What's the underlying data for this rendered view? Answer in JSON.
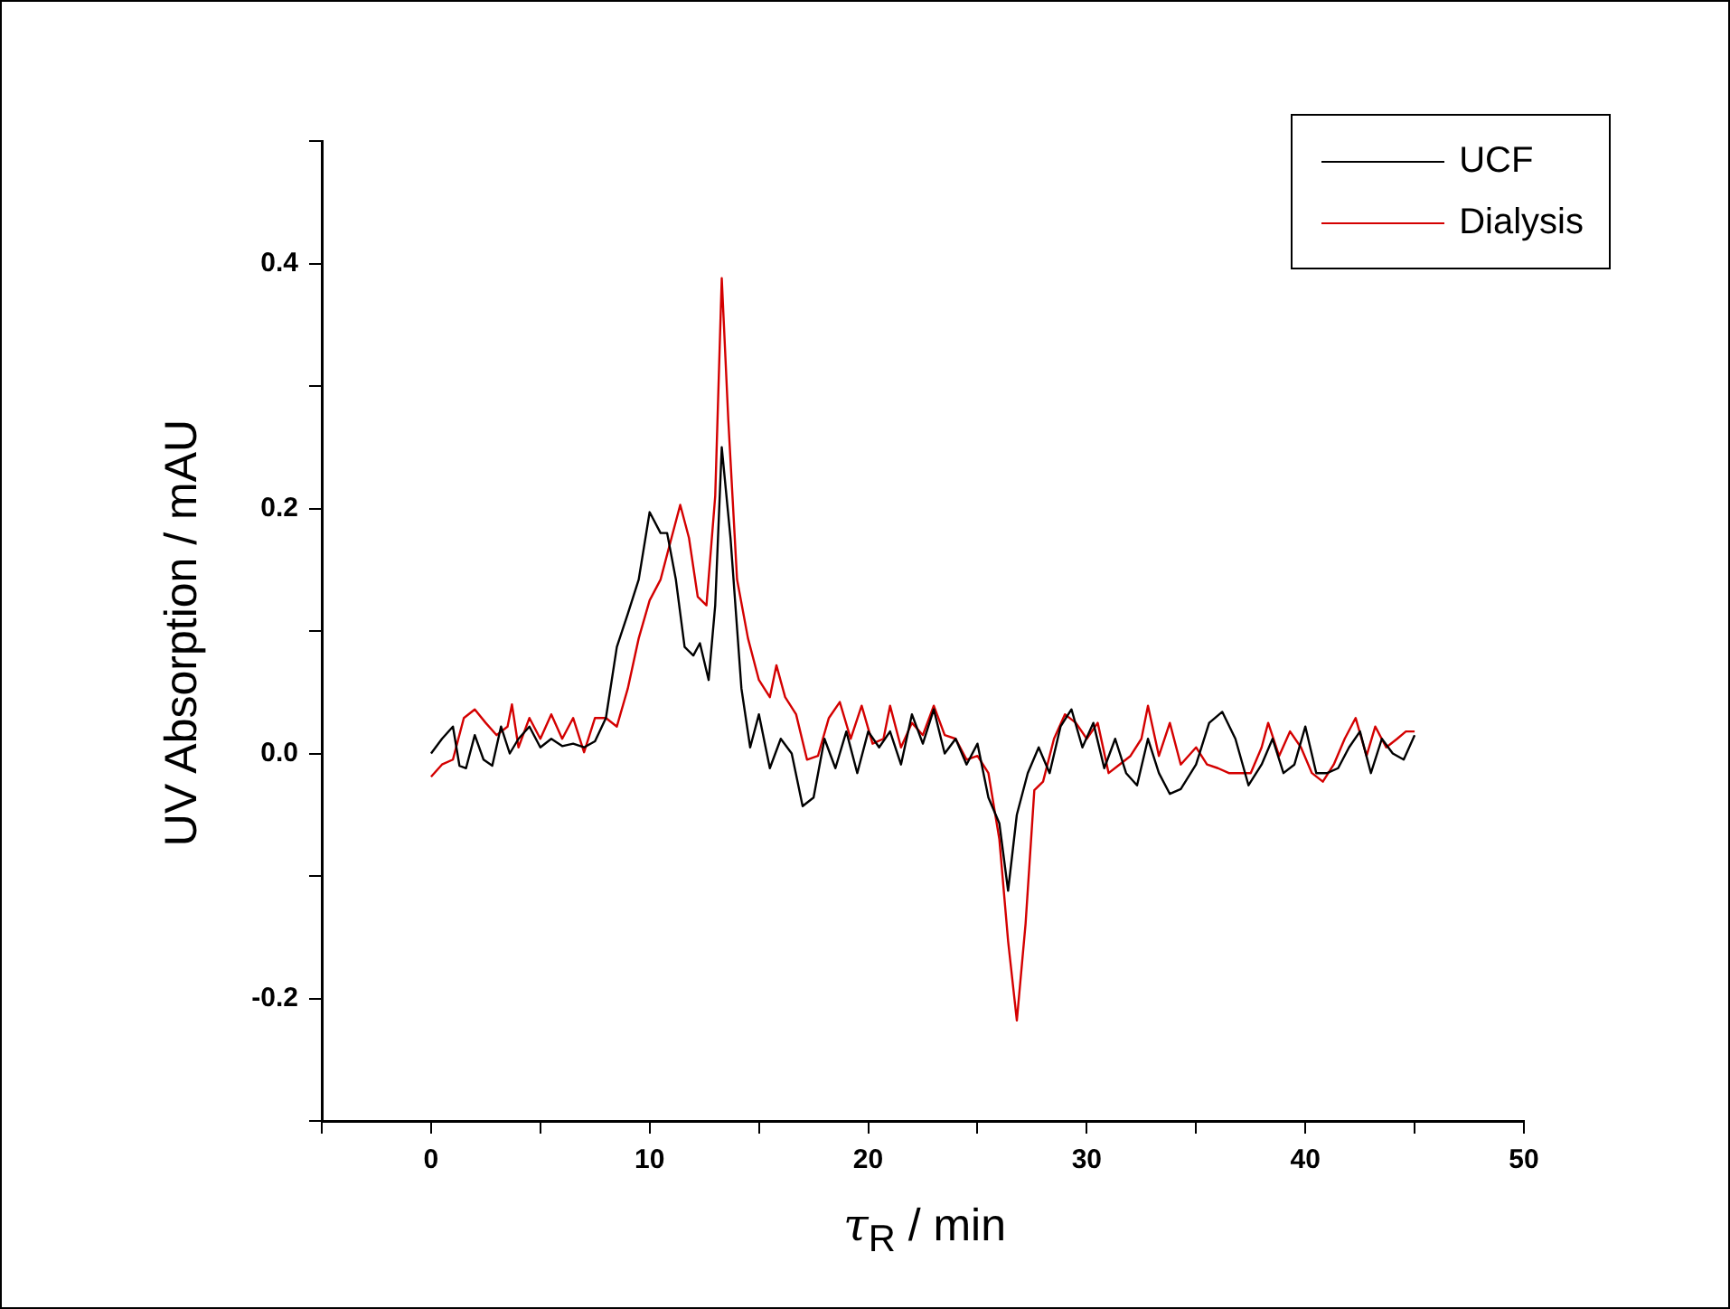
{
  "chart_data": {
    "type": "line",
    "xlabel": "τ$_{R}$ / min",
    "ylabel": "UV Absorption / mAU",
    "xlim": [
      -5,
      50
    ],
    "ylim": [
      -0.3,
      0.5
    ],
    "xticks": [
      {
        "value": -5,
        "label": null
      },
      0,
      {
        "value": 5,
        "label": null
      },
      10,
      {
        "value": 15,
        "label": null
      },
      20,
      {
        "value": 25,
        "label": null
      },
      30,
      {
        "value": 35,
        "label": null
      },
      40,
      {
        "value": 45,
        "label": null
      },
      50
    ],
    "yticks": [
      {
        "value": -0.3,
        "label": null
      },
      {
        "value": -0.2,
        "label": "-0.2"
      },
      {
        "value": -0.1,
        "label": null
      },
      {
        "value": 0,
        "label": "0.0"
      },
      {
        "value": 0.1,
        "label": null
      },
      {
        "value": 0.2,
        "label": "0.2"
      },
      {
        "value": 0.3,
        "label": null
      },
      {
        "value": 0.4,
        "label": "0.4"
      },
      {
        "value": 0.5,
        "label": null
      }
    ],
    "grid": false,
    "legend": "top right",
    "marker": "none",
    "line_style": "solid",
    "series": [
      {
        "name": "UCF",
        "color": "#000000",
        "x": [
          0,
          0.5,
          1,
          1.3,
          1.6,
          2,
          2.4,
          2.8,
          3.2,
          3.6,
          4,
          4.5,
          5,
          5.5,
          6,
          6.5,
          7,
          7.5,
          8,
          8.5,
          9,
          9.5,
          10,
          10.5,
          10.8,
          11.2,
          11.6,
          12,
          12.3,
          12.7,
          13,
          13.3,
          13.7,
          14.2,
          14.6,
          15,
          15.5,
          16,
          16.5,
          17,
          17.5,
          18,
          18.5,
          19,
          19.5,
          20,
          20.5,
          21,
          21.5,
          22,
          22.5,
          23,
          23.5,
          24,
          24.5,
          25,
          25.5,
          26,
          26.4,
          26.8,
          27.3,
          27.8,
          28.3,
          28.8,
          29.3,
          29.8,
          30.3,
          30.8,
          31.3,
          31.8,
          32.3,
          32.8,
          33.3,
          33.8,
          34.3,
          35,
          35.6,
          36.2,
          36.8,
          37.4,
          38,
          38.5,
          39,
          39.5,
          40,
          40.5,
          41,
          41.5,
          42,
          42.5,
          43,
          43.5,
          44,
          44.5,
          45
        ],
        "values": [
          0,
          0.012,
          0.022,
          -0.01,
          -0.012,
          0.015,
          -0.005,
          -0.01,
          0.022,
          0,
          0.012,
          0.022,
          0.005,
          0.012,
          0.006,
          0.008,
          0.005,
          0.01,
          0.029,
          0.087,
          0.114,
          0.142,
          0.197,
          0.18,
          0.18,
          0.142,
          0.087,
          0.08,
          0.09,
          0.06,
          0.121,
          0.25,
          0.176,
          0.053,
          0.005,
          0.032,
          -0.012,
          0.012,
          0,
          -0.043,
          -0.036,
          0.012,
          -0.012,
          0.018,
          -0.016,
          0.018,
          0.005,
          0.018,
          -0.009,
          0.032,
          0.008,
          0.036,
          0,
          0.012,
          -0.009,
          0.008,
          -0.036,
          -0.057,
          -0.112,
          -0.05,
          -0.016,
          0.005,
          -0.016,
          0.022,
          0.036,
          0.005,
          0.025,
          -0.012,
          0.012,
          -0.016,
          -0.026,
          0.012,
          -0.016,
          -0.033,
          -0.029,
          -0.009,
          0.025,
          0.034,
          0.012,
          -0.026,
          -0.009,
          0.012,
          -0.016,
          -0.009,
          0.022,
          -0.016,
          -0.016,
          -0.012,
          0.005,
          0.018,
          -0.016,
          0.012,
          0,
          -0.005,
          0.015
        ]
      },
      {
        "name": "Dialysis",
        "color": "#d40000",
        "x": [
          0,
          0.5,
          1,
          1.5,
          2,
          2.5,
          3,
          3.5,
          3.7,
          4,
          4.5,
          5,
          5.5,
          6,
          6.5,
          7,
          7.5,
          8,
          8.5,
          9,
          9.5,
          10,
          10.5,
          11,
          11.4,
          11.8,
          12.2,
          12.6,
          13,
          13.3,
          13.6,
          14,
          14.5,
          15,
          15.5,
          15.8,
          16.2,
          16.7,
          17.2,
          17.7,
          18.2,
          18.7,
          19.2,
          19.7,
          20.2,
          20.7,
          21,
          21.5,
          22,
          22.5,
          23,
          23.5,
          24,
          24.5,
          25,
          25.5,
          26,
          26.4,
          26.8,
          27.2,
          27.6,
          28,
          28.5,
          29,
          29.5,
          30,
          30.5,
          31,
          31.5,
          32,
          32.5,
          32.8,
          33.3,
          33.8,
          34.3,
          35,
          35.5,
          36,
          36.5,
          37,
          37.5,
          38,
          38.3,
          38.8,
          39.3,
          39.8,
          40.3,
          40.8,
          41.3,
          41.8,
          42.3,
          42.8,
          43.2,
          43.7,
          44.2,
          44.6,
          45
        ],
        "values": [
          -0.019,
          -0.009,
          -0.005,
          0.029,
          0.036,
          0.025,
          0.015,
          0.022,
          0.04,
          0.005,
          0.029,
          0.012,
          0.032,
          0.012,
          0.029,
          0.001,
          0.029,
          0.029,
          0.022,
          0.053,
          0.094,
          0.125,
          0.142,
          0.176,
          0.203,
          0.176,
          0.128,
          0.121,
          0.21,
          0.388,
          0.272,
          0.142,
          0.094,
          0.06,
          0.046,
          0.072,
          0.046,
          0.032,
          -0.005,
          -0.002,
          0.029,
          0.042,
          0.012,
          0.039,
          0.008,
          0.012,
          0.039,
          0.005,
          0.025,
          0.015,
          0.039,
          0.015,
          0.012,
          -0.005,
          -0.002,
          -0.016,
          -0.07,
          -0.153,
          -0.218,
          -0.139,
          -0.03,
          -0.023,
          0.012,
          0.032,
          0.025,
          0.012,
          0.025,
          -0.016,
          -0.009,
          -0.002,
          0.012,
          0.039,
          -0.002,
          0.025,
          -0.009,
          0.005,
          -0.009,
          -0.012,
          -0.016,
          -0.016,
          -0.016,
          0.005,
          0.025,
          -0.002,
          0.018,
          0.005,
          -0.016,
          -0.023,
          -0.009,
          0.012,
          0.029,
          -0.002,
          0.022,
          0.005,
          0.012,
          0.018,
          0.018
        ]
      }
    ]
  }
}
